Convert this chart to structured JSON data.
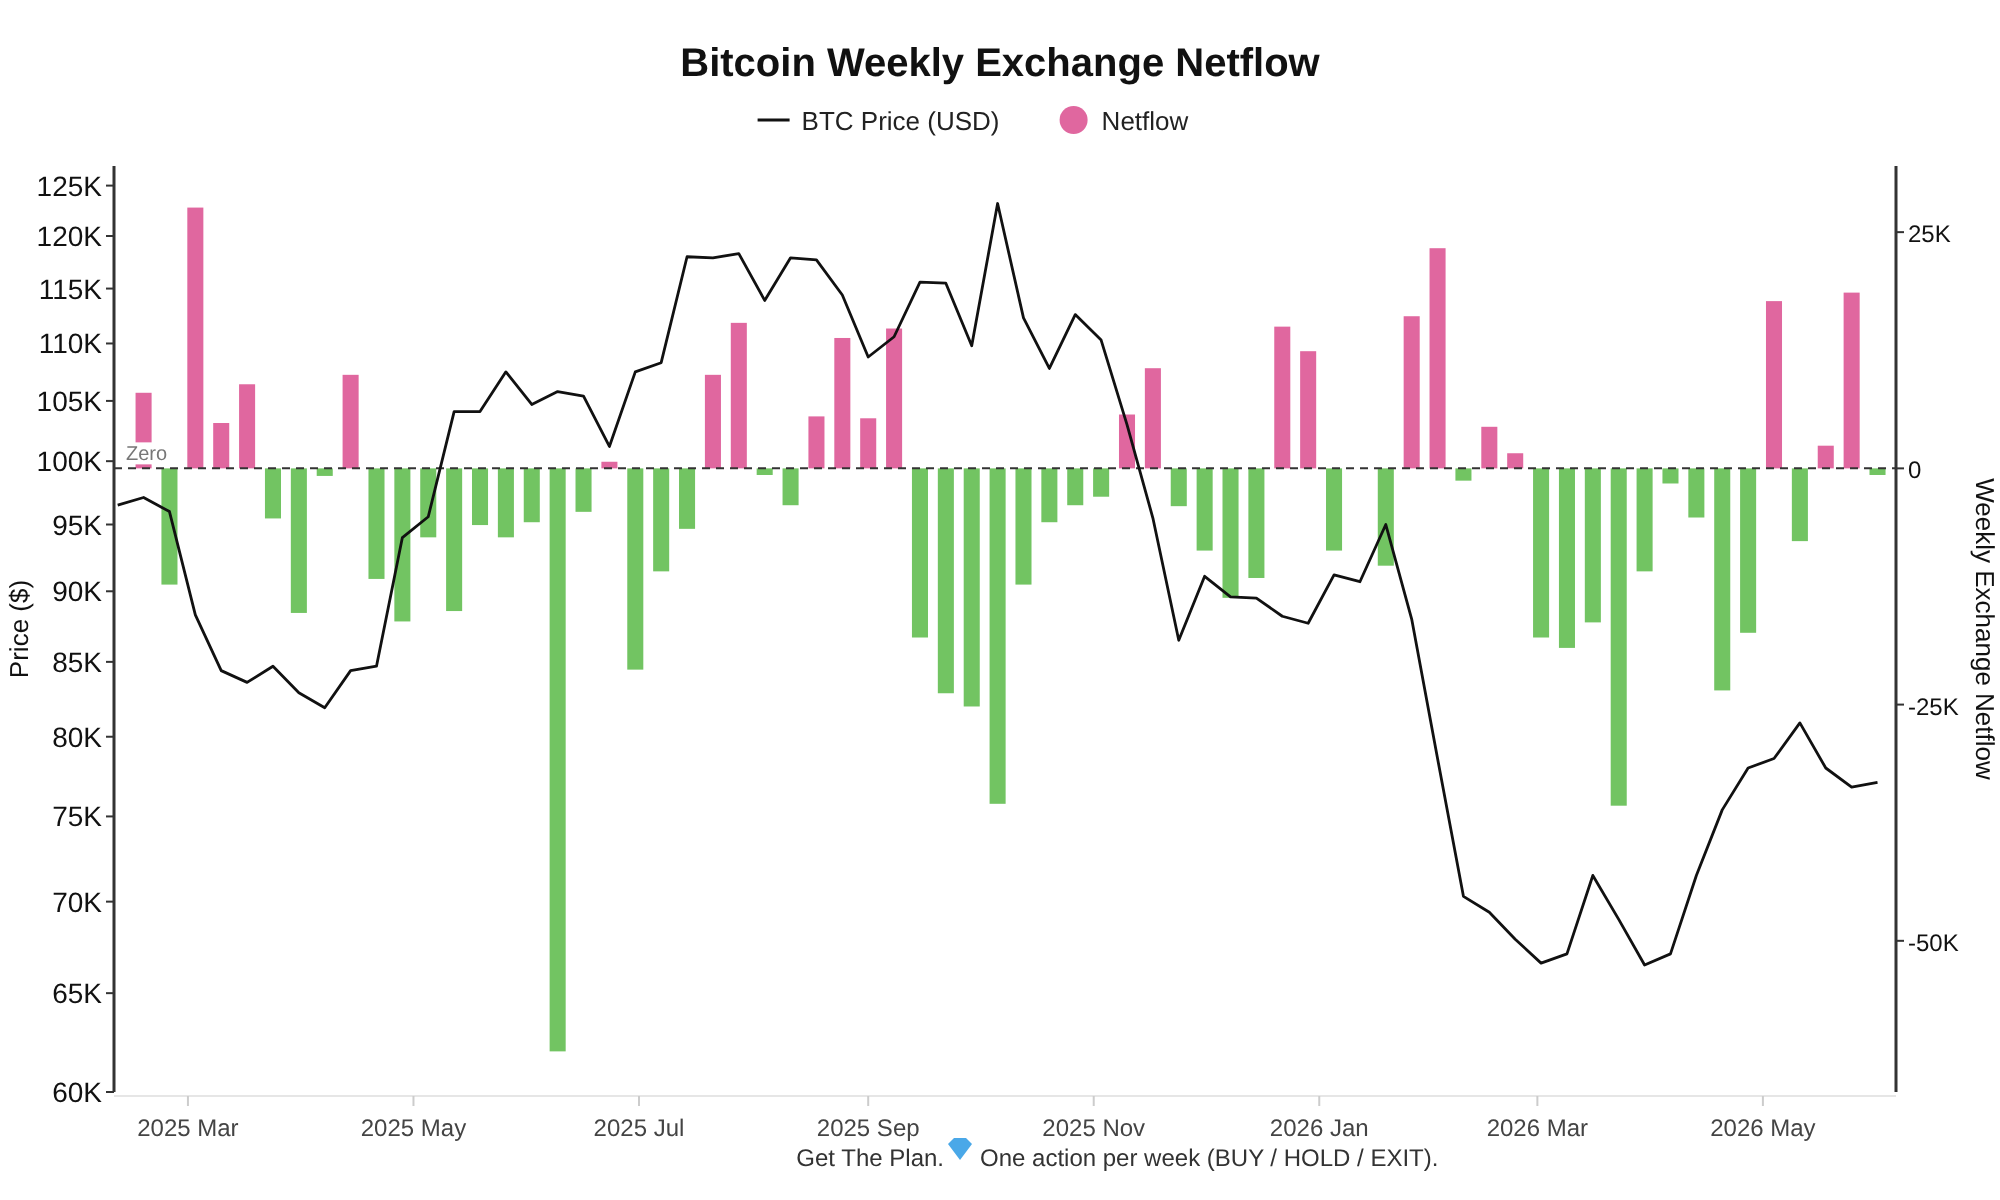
{
  "chart_data": {
    "type": "line",
    "title": "Bitcoin Weekly Exchange Netflow",
    "ylabel": "Price ($)",
    "y2label": "Weekly Exchange Netflow",
    "log": "y",
    "legend": "top",
    "marker": "none",
    "x": [
      "2025-02-10",
      "2025-02-17",
      "2025-02-24",
      "2025-03-03",
      "2025-03-10",
      "2025-03-17",
      "2025-03-24",
      "2025-03-31",
      "2025-04-07",
      "2025-04-14",
      "2025-04-21",
      "2025-04-28",
      "2025-05-05",
      "2025-05-12",
      "2025-05-19",
      "2025-05-26",
      "2025-06-02",
      "2025-06-09",
      "2025-06-16",
      "2025-06-23",
      "2025-06-30",
      "2025-07-07",
      "2025-07-14",
      "2025-07-21",
      "2025-07-28",
      "2025-08-04",
      "2025-08-11",
      "2025-08-18",
      "2025-08-25",
      "2025-09-01",
      "2025-09-08",
      "2025-09-15",
      "2025-09-22",
      "2025-09-29",
      "2025-10-06",
      "2025-10-13",
      "2025-10-20",
      "2025-10-27",
      "2025-11-03",
      "2025-11-10",
      "2025-11-17",
      "2025-11-24",
      "2025-12-01",
      "2025-12-08",
      "2025-12-15",
      "2025-12-22",
      "2025-12-29",
      "2026-01-05",
      "2026-01-12",
      "2026-01-19",
      "2026-01-26",
      "2026-02-02",
      "2026-02-09",
      "2026-02-16",
      "2026-02-23",
      "2026-03-02",
      "2026-03-09",
      "2026-03-16",
      "2026-03-23",
      "2026-03-30",
      "2026-04-06",
      "2026-04-13",
      "2026-04-20",
      "2026-04-27",
      "2026-05-04",
      "2026-05-11",
      "2026-05-18",
      "2026-05-25",
      "2026-06-01"
    ],
    "xlim": [
      "2025-02-09",
      "2026-06-06"
    ],
    "xticks": [
      {
        "value": "2025-03-01",
        "label": "2025 Mar"
      },
      {
        "value": "2025-05-01",
        "label": "2025 May"
      },
      {
        "value": "2025-07-01",
        "label": "2025 Jul"
      },
      {
        "value": "2025-09-01",
        "label": "2025 Sep"
      },
      {
        "value": "2025-11-01",
        "label": "2025 Nov"
      },
      {
        "value": "2026-01-01",
        "label": "2026 Jan"
      },
      {
        "value": "2026-03-01",
        "label": "2026 Mar"
      },
      {
        "value": "2026-05-01",
        "label": "2026 May"
      }
    ],
    "ylim": [
      60000,
      127000
    ],
    "yticks": [
      {
        "value": 60000,
        "label": "60K"
      },
      {
        "value": 65000,
        "label": "65K"
      },
      {
        "value": 70000,
        "label": "70K"
      },
      {
        "value": 75000,
        "label": "75K"
      },
      {
        "value": 80000,
        "label": "80K"
      },
      {
        "value": 85000,
        "label": "85K"
      },
      {
        "value": 90000,
        "label": "90K"
      },
      {
        "value": 95000,
        "label": "95K"
      },
      {
        "value": 100000,
        "label": "100K"
      },
      {
        "value": 105000,
        "label": "105K"
      },
      {
        "value": 110000,
        "label": "110K"
      },
      {
        "value": 115000,
        "label": "115K"
      },
      {
        "value": 120000,
        "label": "120K"
      },
      {
        "value": 125000,
        "label": "125K"
      }
    ],
    "y2lim": [
      -66000,
      32000
    ],
    "y2ticks": [
      {
        "value": 25000,
        "label": "25K"
      },
      0,
      {
        "value": -25000,
        "label": "-25K"
      },
      {
        "value": -50000,
        "label": "-50K"
      }
    ],
    "ref_lines": [
      {
        "axis": "y2",
        "value": 0,
        "label": "Zero",
        "color": "#333333",
        "line_style": "dashed"
      }
    ],
    "annotations": [
      "Get The Plan.",
      "One action per week (BUY / HOLD / EXIT)."
    ],
    "series": [
      {
        "name": "BTC Price (USD)",
        "axis": "y",
        "color": "#111111",
        "line_style": "solid",
        "values": [
          96500,
          97100,
          96000,
          88300,
          84400,
          83600,
          84700,
          82900,
          81900,
          84400,
          84700,
          94000,
          95600,
          104100,
          104100,
          107500,
          104700,
          105800,
          105400,
          101200,
          107500,
          108300,
          118000,
          117900,
          118300,
          113900,
          117900,
          117700,
          114400,
          108800,
          110600,
          115600,
          115500,
          109800,
          123200,
          112300,
          107800,
          112600,
          110300,
          103000,
          95500,
          86500,
          91100,
          89600,
          89500,
          88200,
          87700,
          91200,
          90700,
          95000,
          88000,
          78600,
          70300,
          69400,
          67900,
          66600,
          67100,
          71500,
          69000,
          66500,
          67100,
          71500,
          75400,
          78000,
          78600,
          80900,
          78000,
          76800,
          77100
        ]
      },
      {
        "name": "Netflow",
        "type": "bar",
        "axis": "y2",
        "color": "#e0679f",
        "x": [
          "2025-02-17",
          "2025-02-24",
          "2025-03-03",
          "2025-03-10",
          "2025-03-17",
          "2025-03-24",
          "2025-03-31",
          "2025-04-07",
          "2025-04-14",
          "2025-04-21",
          "2025-04-28",
          "2025-05-05",
          "2025-05-12",
          "2025-05-19",
          "2025-05-26",
          "2025-06-02",
          "2025-06-09",
          "2025-06-16",
          "2025-06-23",
          "2025-06-30",
          "2025-07-07",
          "2025-07-14",
          "2025-07-21",
          "2025-07-28",
          "2025-08-04",
          "2025-08-11",
          "2025-08-18",
          "2025-08-25",
          "2025-09-01",
          "2025-09-08",
          "2025-09-15",
          "2025-09-22",
          "2025-09-29",
          "2025-10-06",
          "2025-10-13",
          "2025-10-20",
          "2025-10-27",
          "2025-11-03",
          "2025-11-10",
          "2025-11-17",
          "2025-11-24",
          "2025-12-01",
          "2025-12-08",
          "2025-12-15",
          "2025-12-22",
          "2025-12-29",
          "2026-01-05",
          "2026-01-12",
          "2026-01-19",
          "2026-01-26",
          "2026-02-02",
          "2026-02-09",
          "2026-02-16",
          "2026-02-23",
          "2026-03-02",
          "2026-03-09",
          "2026-03-16",
          "2026-03-23",
          "2026-03-30",
          "2026-04-06",
          "2026-04-13",
          "2026-04-20",
          "2026-04-27",
          "2026-05-04",
          "2026-05-11",
          "2026-05-18",
          "2026-05-25",
          "2026-06-01"
        ],
        "colors": [
          "#e0679f",
          "#72c462",
          "#e0679f",
          "#e0679f",
          "#e0679f",
          "#72c462",
          "#72c462",
          "#72c462",
          "#e0679f",
          "#72c462",
          "#72c462",
          "#72c462",
          "#72c462",
          "#72c462",
          "#72c462",
          "#72c462",
          "#72c462",
          "#72c462",
          "#e0679f",
          "#72c462",
          "#72c462",
          "#72c462",
          "#e0679f",
          "#e0679f",
          "#72c462",
          "#72c462",
          "#e0679f",
          "#e0679f",
          "#e0679f",
          "#e0679f",
          "#72c462",
          "#72c462",
          "#72c462",
          "#72c462",
          "#72c462",
          "#72c462",
          "#72c462",
          "#72c462",
          "#e0679f",
          "#e0679f",
          "#72c462",
          "#72c462",
          "#72c462",
          "#72c462",
          "#e0679f",
          "#e0679f",
          "#72c462",
          "#e0679f",
          "#72c462",
          "#e0679f",
          "#e0679f",
          "#72c462",
          "#e0679f",
          "#e0679f",
          "#72c462",
          "#72c462",
          "#72c462",
          "#72c462",
          "#72c462",
          "#72c462",
          "#72c462",
          "#72c462",
          "#72c462",
          "#e0679f",
          "#72c462",
          "#e0679f",
          "#e0679f",
          "#72c462"
        ],
        "values": [
          8000,
          -12300,
          27600,
          4800,
          8900,
          -5300,
          -15300,
          -800,
          9900,
          -11700,
          -16200,
          -7300,
          -15100,
          -6000,
          -7300,
          -5700,
          -61700,
          -4600,
          700,
          -21300,
          -10900,
          -6400,
          9900,
          15400,
          -700,
          -3900,
          5500,
          13800,
          5300,
          14800,
          -17900,
          -23800,
          -25200,
          -35500,
          -12300,
          -5700,
          -3900,
          -3000,
          5700,
          10600,
          -4000,
          -8700,
          -13700,
          -11600,
          15000,
          12400,
          -8700,
          0,
          -10300,
          16100,
          23300,
          -1300,
          4400,
          1600,
          -17900,
          -19000,
          -16300,
          -35700,
          -10900,
          -1600,
          -5200,
          -23500,
          -17400,
          17700,
          -7700,
          2400,
          18600,
          -700
        ]
      }
    ]
  }
}
